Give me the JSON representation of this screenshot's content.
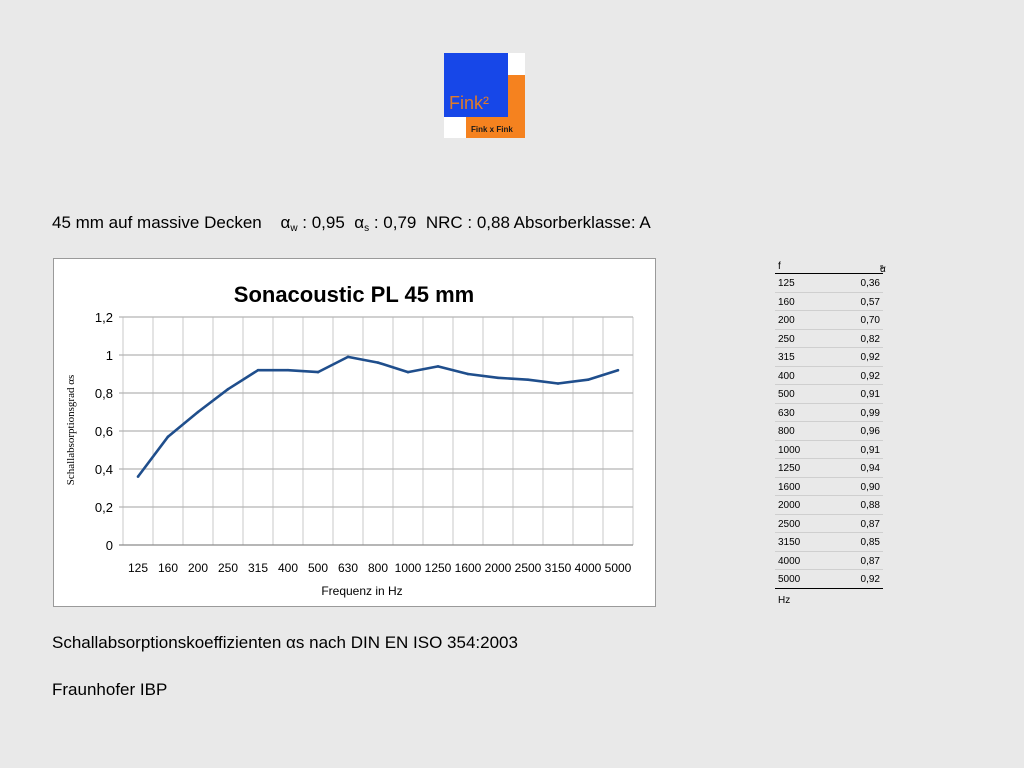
{
  "logo": {
    "name": "Fink²",
    "tagline": "Fink x Fink",
    "colors": {
      "blue": "#1747e8",
      "orange": "#f5821f"
    }
  },
  "subtitle": {
    "part1": "45 mm auf massive Decken",
    "aw_sym": "α",
    "aw_sub": "w",
    "aw_val": " : 0,95",
    "as_sym": "α",
    "as_sub": "s",
    "as_val": " : 0,79",
    "rest": "NRC : 0,88 Absorberklasse: A"
  },
  "chart_data": {
    "type": "line",
    "title": "Sonacoustic PL 45 mm",
    "xlabel": "Frequenz in Hz",
    "ylabel": "Schallabsorptionsgrad αs",
    "categories": [
      "125",
      "160",
      "200",
      "250",
      "315",
      "400",
      "500",
      "630",
      "800",
      "1000",
      "1250",
      "1600",
      "2000",
      "2500",
      "3150",
      "4000",
      "5000"
    ],
    "values": [
      0.36,
      0.57,
      0.7,
      0.82,
      0.92,
      0.92,
      0.91,
      0.99,
      0.96,
      0.91,
      0.94,
      0.9,
      0.88,
      0.87,
      0.85,
      0.87,
      0.92
    ],
    "yticks": [
      "0",
      "0,2",
      "0,4",
      "0,6",
      "0,8",
      "1",
      "1,2"
    ],
    "ylim": [
      0,
      1.2
    ],
    "grid": true,
    "line_color": "#1f4e8c"
  },
  "table": {
    "col1": "f",
    "col2_sym": "α",
    "col2_sub": "s",
    "rows": [
      [
        "125",
        "0,36"
      ],
      [
        "160",
        "0,57"
      ],
      [
        "200",
        "0,70"
      ],
      [
        "250",
        "0,82"
      ],
      [
        "315",
        "0,92"
      ],
      [
        "400",
        "0,92"
      ],
      [
        "500",
        "0,91"
      ],
      [
        "630",
        "0,99"
      ],
      [
        "800",
        "0,96"
      ],
      [
        "1000",
        "0,91"
      ],
      [
        "1250",
        "0,94"
      ],
      [
        "1600",
        "0,90"
      ],
      [
        "2000",
        "0,88"
      ],
      [
        "2500",
        "0,87"
      ],
      [
        "3150",
        "0,85"
      ],
      [
        "4000",
        "0,87"
      ],
      [
        "5000",
        "0,92"
      ]
    ],
    "unit": "Hz"
  },
  "caption": "Schallabsorptionskoeffizienten αs nach DIN EN ISO 354:2003",
  "source": "Fraunhofer IBP"
}
